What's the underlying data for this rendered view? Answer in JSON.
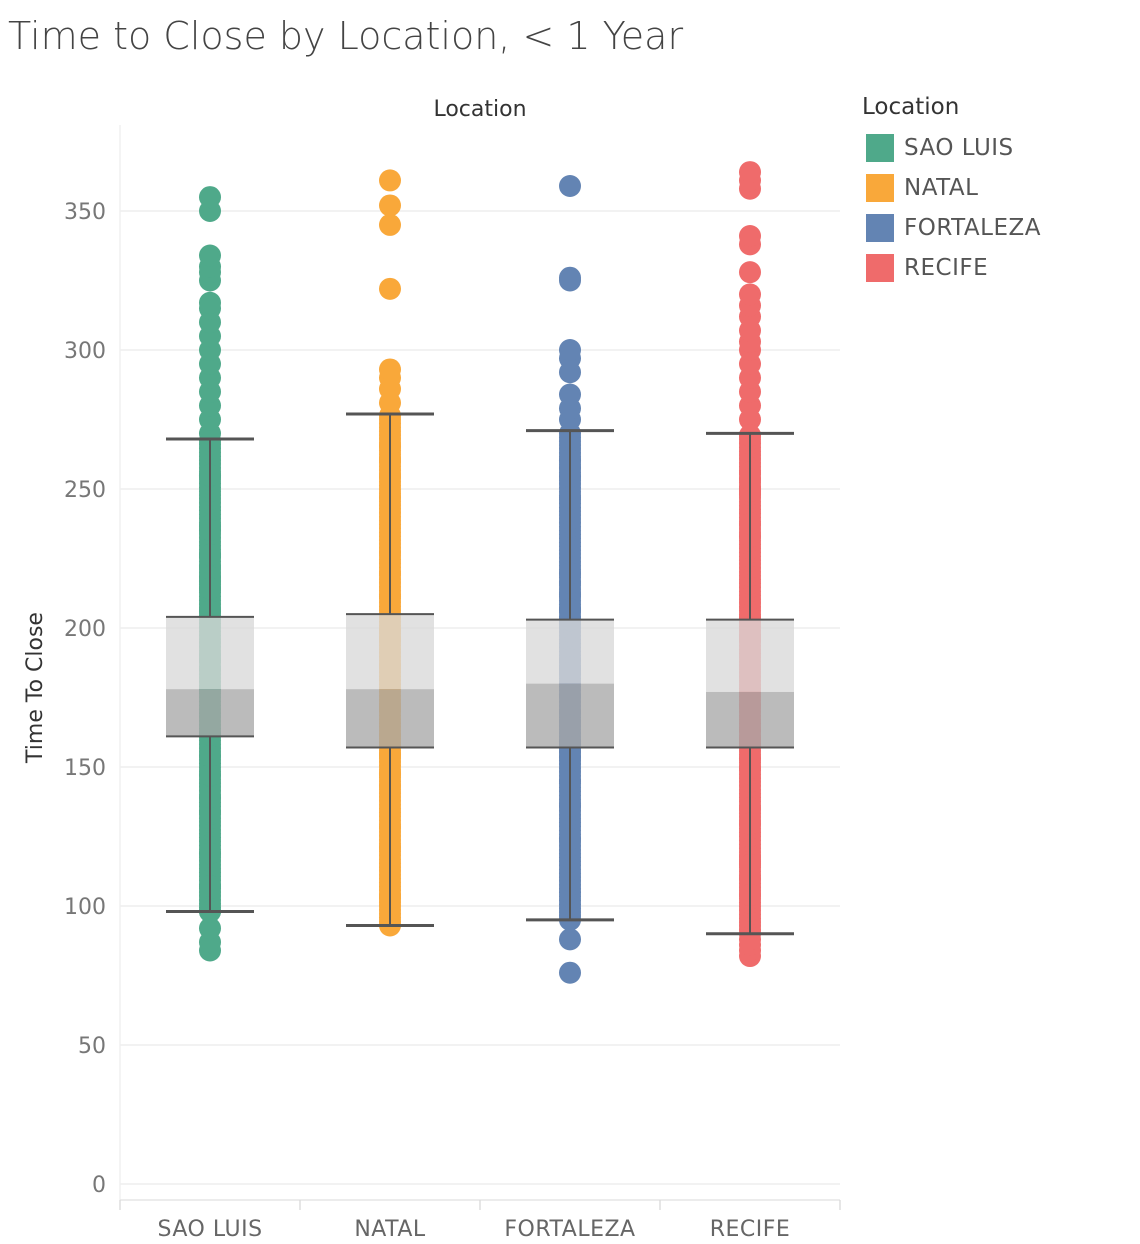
{
  "title": "Time to Close by Location, < 1 Year",
  "legend": {
    "title": "Location",
    "items": [
      {
        "label": "SAO LUIS",
        "color": "#4fa98a"
      },
      {
        "label": "NATAL",
        "color": "#f9a83a"
      },
      {
        "label": "FORTALEZA",
        "color": "#6384b3"
      },
      {
        "label": "RECIFE",
        "color": "#ef6b6b"
      }
    ]
  },
  "chart_data": {
    "type": "box",
    "title": "Time to Close by Location, < 1 Year",
    "column_header": "Location",
    "xlabel": "",
    "ylabel": "Time To Close",
    "ylim": [
      0,
      375
    ],
    "yticks": [
      0,
      50,
      100,
      150,
      200,
      250,
      300,
      350
    ],
    "grid": true,
    "legend_position": "right",
    "categories": [
      "SAO LUIS",
      "NATAL",
      "FORTALEZA",
      "RECIFE"
    ],
    "series": [
      {
        "name": "SAO LUIS",
        "color": "#4fa98a",
        "box": {
          "whisker_low": 98,
          "q1": 161,
          "median": 178,
          "q3": 204,
          "whisker_high": 268
        },
        "range": [
          84,
          355
        ],
        "outliers": [
          84,
          87,
          92,
          270,
          275,
          280,
          285,
          290,
          295,
          300,
          305,
          310,
          315,
          317,
          325,
          328,
          330,
          334,
          350,
          355
        ]
      },
      {
        "name": "NATAL",
        "color": "#f9a83a",
        "box": {
          "whisker_low": 93,
          "q1": 157,
          "median": 178,
          "q3": 205,
          "whisker_high": 277
        },
        "range": [
          93,
          361
        ],
        "outliers": [
          281,
          286,
          290,
          293,
          322,
          345,
          352,
          361
        ]
      },
      {
        "name": "FORTALEZA",
        "color": "#6384b3",
        "box": {
          "whisker_low": 95,
          "q1": 157,
          "median": 180,
          "q3": 203,
          "whisker_high": 271
        },
        "range": [
          76,
          359
        ],
        "outliers": [
          76,
          88,
          275,
          279,
          284,
          292,
          297,
          300,
          325,
          326,
          359
        ]
      },
      {
        "name": "RECIFE",
        "color": "#ef6b6b",
        "box": {
          "whisker_low": 90,
          "q1": 157,
          "median": 177,
          "q3": 203,
          "whisker_high": 270
        },
        "range": [
          82,
          364
        ],
        "outliers": [
          82,
          84,
          86,
          88,
          275,
          280,
          285,
          290,
          295,
          300,
          303,
          307,
          312,
          316,
          320,
          328,
          338,
          341,
          358,
          361,
          364
        ]
      }
    ]
  }
}
